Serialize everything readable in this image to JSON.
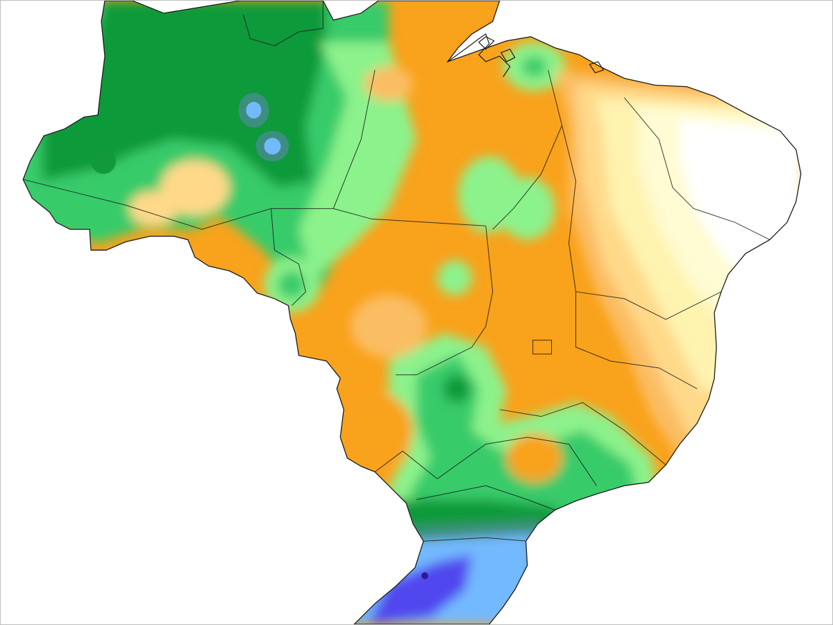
{
  "map": {
    "country_shape": "brazil-outline",
    "state_borders": "state-boundaries",
    "palette": {
      "very_dry": "#ffffff",
      "dry_light": "#fffbd2",
      "dry_pale": "#fff3b0",
      "dry_mid": "#ffd98a",
      "dry_orange": "#fbbd63",
      "orange": "#f9a21b",
      "green_light": "#8cf28c",
      "green_mid": "#39cb6b",
      "green_dark": "#119a3b",
      "teal": "#3c8f7f",
      "blue_light": "#73b9ff",
      "blue_mid": "#4ea0f0",
      "violet": "#5147ee",
      "border": "#1a1a1a"
    }
  }
}
